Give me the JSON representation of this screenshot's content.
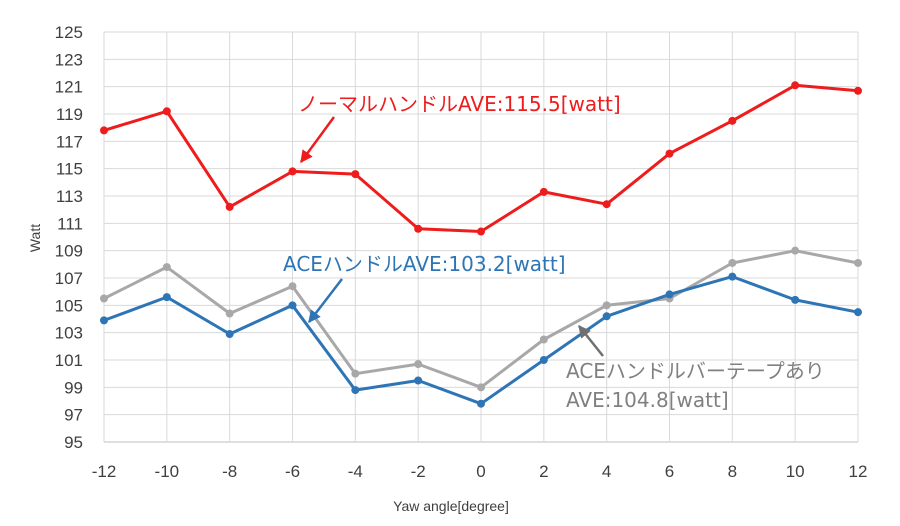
{
  "chart_data": {
    "type": "line",
    "title": "",
    "xlabel": "Yaw angle[degree]",
    "ylabel": "Watt",
    "x": [
      -12,
      -10,
      -8,
      -6,
      -4,
      -2,
      0,
      2,
      4,
      6,
      8,
      10,
      12
    ],
    "xlim": [
      -12,
      12
    ],
    "ylim": [
      95,
      125
    ],
    "yticks": [
      95,
      97,
      99,
      101,
      103,
      105,
      107,
      109,
      111,
      113,
      115,
      117,
      119,
      121,
      123,
      125
    ],
    "grid": true,
    "legend": "none",
    "series": [
      {
        "color": "#ee1c1c",
        "values": [
          117.8,
          119.2,
          112.2,
          114.8,
          114.6,
          110.6,
          110.4,
          113.3,
          112.4,
          116.1,
          118.5,
          121.1,
          120.7
        ]
      },
      {
        "color": "#a8a8a8",
        "values": [
          105.5,
          107.8,
          104.4,
          106.4,
          100.0,
          100.7,
          99.0,
          102.5,
          105.0,
          105.5,
          108.1,
          109.0,
          108.1
        ]
      },
      {
        "color": "#2e75b6",
        "values": [
          103.9,
          105.6,
          102.9,
          105.0,
          98.8,
          99.5,
          97.8,
          101.0,
          104.2,
          105.8,
          107.1,
          105.4,
          104.5
        ]
      }
    ],
    "annotations": [
      {
        "text": "ノーマルハンドルAVE:115.5[watt]",
        "color": "#ee1c1c"
      },
      {
        "text": "ACEハンドルAVE:103.2[watt]",
        "color": "#2e75b6"
      },
      {
        "text": "ACEハンドルバーテープあり",
        "color": "#808080"
      },
      {
        "text": "AVE:104.8[watt]",
        "color": "#808080"
      }
    ]
  }
}
